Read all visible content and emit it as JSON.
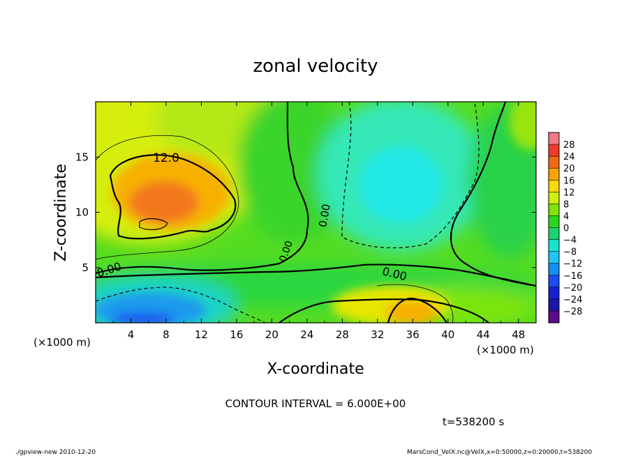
{
  "chart_data": {
    "type": "heatmap",
    "title": "zonal velocity",
    "xlabel": "X-coordinate",
    "ylabel": "Z-coordinate",
    "x_unit_note": "(×1000 m)",
    "y_unit_note": "(×1000 m)",
    "xlim": [
      0,
      50
    ],
    "ylim": [
      0,
      20
    ],
    "x_ticks": [
      "4",
      "8",
      "12",
      "16",
      "20",
      "24",
      "28",
      "32",
      "36",
      "40",
      "44",
      "48"
    ],
    "y_ticks": [
      "5",
      "10",
      "15"
    ],
    "colorbar_labels": [
      "28",
      "24",
      "20",
      "16",
      "12",
      "8",
      "4",
      "0",
      "−4",
      "−8",
      "−12",
      "−16",
      "−20",
      "−24",
      "−28"
    ],
    "colorbar_colors": [
      "#f07a86",
      "#ee3a2a",
      "#f06a10",
      "#f7a400",
      "#f8d800",
      "#cfee00",
      "#7fe400",
      "#2bd61c",
      "#18d470",
      "#16e4d0",
      "#1ec4f4",
      "#148ef0",
      "#1a4ef0",
      "#1420d2",
      "#1a14a8",
      "#5a0a8a"
    ],
    "contour_labels": [
      "12.0",
      "0.00",
      "0.00",
      "0.00",
      "0.00"
    ],
    "contour_interval_text": "CONTOUR INTERVAL = 6.000E+00",
    "time_text": "t=538200  s",
    "footer_left": "./gpview-new  2010-12-20",
    "footer_right": "MarsCond_VelX.nc@VelX,x=0:50000,z=0:20000,t=538200"
  }
}
